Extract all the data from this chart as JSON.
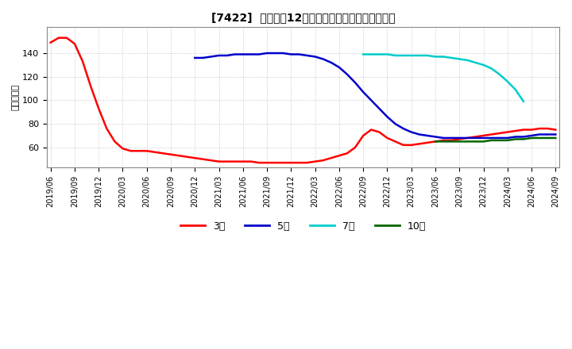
{
  "title": "[7422]  経常利益12か月移動合計の標準偏差の推移",
  "ylabel": "（百万円）",
  "background_color": "#ffffff",
  "plot_background": "#ffffff",
  "series": {
    "3年": {
      "color": "#ff0000",
      "x": [
        0,
        1,
        2,
        3,
        4,
        5,
        6,
        7,
        8,
        9,
        10,
        11,
        12,
        13,
        14,
        15,
        16,
        17,
        18,
        19,
        20,
        21,
        22,
        23,
        24,
        25,
        26,
        27,
        28,
        29,
        30,
        31,
        32,
        33,
        34,
        35,
        36,
        37,
        38,
        39,
        40,
        41,
        42,
        43,
        44,
        45,
        46,
        47,
        48,
        49,
        50,
        51,
        52,
        53,
        54,
        55,
        56,
        57,
        58,
        59,
        60,
        61,
        62,
        63
      ],
      "y": [
        149,
        153,
        153,
        148,
        133,
        112,
        93,
        76,
        65,
        59,
        57,
        57,
        57,
        56,
        55,
        54,
        53,
        52,
        51,
        50,
        49,
        48,
        48,
        48,
        48,
        48,
        47,
        47,
        47,
        47,
        47,
        47,
        47,
        48,
        49,
        51,
        53,
        55,
        60,
        70,
        75,
        73,
        68,
        65,
        62,
        62,
        63,
        64,
        65,
        66,
        66,
        67,
        68,
        69,
        70,
        71,
        72,
        73,
        74,
        75,
        75,
        76,
        76,
        75
      ]
    },
    "5年": {
      "color": "#0000cc",
      "x": [
        0,
        1,
        2,
        3,
        4,
        5,
        6,
        7,
        8,
        9,
        10,
        11,
        12,
        13,
        14,
        15,
        16,
        17,
        18,
        19,
        20,
        21,
        22,
        23,
        24,
        25,
        26,
        27,
        28,
        29,
        30,
        31,
        32,
        33,
        34,
        35,
        36,
        37,
        38,
        39,
        40,
        41,
        42,
        43,
        44,
        45,
        46,
        47,
        48,
        49,
        50,
        51,
        52,
        53,
        54,
        55,
        56,
        57,
        58,
        59,
        60,
        61,
        62,
        63
      ],
      "y": [
        null,
        null,
        null,
        null,
        null,
        null,
        null,
        null,
        null,
        null,
        null,
        null,
        null,
        null,
        null,
        null,
        null,
        null,
        136,
        136,
        137,
        138,
        138,
        139,
        139,
        139,
        139,
        140,
        140,
        140,
        139,
        139,
        138,
        137,
        135,
        132,
        128,
        122,
        115,
        107,
        100,
        93,
        86,
        80,
        76,
        73,
        71,
        70,
        69,
        68,
        68,
        68,
        68,
        68,
        68,
        68,
        68,
        68,
        69,
        69,
        70,
        71,
        71,
        71
      ]
    },
    "7年": {
      "color": "#00cccc",
      "x": [
        0,
        1,
        2,
        3,
        4,
        5,
        6,
        7,
        8,
        9,
        10,
        11,
        12,
        13,
        14,
        15,
        16,
        17,
        18,
        19,
        20,
        21,
        22,
        23,
        24,
        25,
        26,
        27,
        28,
        29,
        30,
        31,
        32,
        33,
        34,
        35,
        36,
        37,
        38,
        39,
        40,
        41,
        42,
        43,
        44,
        45,
        46,
        47,
        48,
        49,
        50,
        51,
        52,
        53,
        54,
        55,
        56,
        57,
        58,
        59,
        60,
        61,
        62,
        63
      ],
      "y": [
        null,
        null,
        null,
        null,
        null,
        null,
        null,
        null,
        null,
        null,
        null,
        null,
        null,
        null,
        null,
        null,
        null,
        null,
        null,
        null,
        null,
        null,
        null,
        null,
        null,
        null,
        null,
        null,
        null,
        null,
        null,
        null,
        null,
        null,
        null,
        null,
        null,
        null,
        null,
        139,
        139,
        139,
        139,
        138,
        138,
        138,
        138,
        138,
        137,
        137,
        136,
        135,
        134,
        132,
        130,
        127,
        122,
        116,
        109,
        99,
        null,
        null,
        null,
        null
      ]
    },
    "10年": {
      "color": "#006600",
      "x": [
        0,
        1,
        2,
        3,
        4,
        5,
        6,
        7,
        8,
        9,
        10,
        11,
        12,
        13,
        14,
        15,
        16,
        17,
        18,
        19,
        20,
        21,
        22,
        23,
        24,
        25,
        26,
        27,
        28,
        29,
        30,
        31,
        32,
        33,
        34,
        35,
        36,
        37,
        38,
        39,
        40,
        41,
        42,
        43,
        44,
        45,
        46,
        47,
        48,
        49,
        50,
        51,
        52,
        53,
        54,
        55,
        56,
        57,
        58,
        59,
        60,
        61,
        62,
        63
      ],
      "y": [
        null,
        null,
        null,
        null,
        null,
        null,
        null,
        null,
        null,
        null,
        null,
        null,
        null,
        null,
        null,
        null,
        null,
        null,
        null,
        null,
        null,
        null,
        null,
        null,
        null,
        null,
        null,
        null,
        null,
        null,
        null,
        null,
        null,
        null,
        null,
        null,
        null,
        null,
        null,
        null,
        null,
        null,
        null,
        null,
        null,
        null,
        null,
        null,
        65,
        65,
        65,
        65,
        65,
        65,
        65,
        66,
        66,
        66,
        67,
        67,
        68,
        68,
        68,
        68
      ]
    }
  },
  "xtick_positions": [
    0,
    3,
    6,
    9,
    12,
    15,
    18,
    21,
    24,
    27,
    30,
    33,
    36,
    39,
    42,
    45,
    48,
    51,
    54,
    57,
    60,
    63
  ],
  "xtick_labels": [
    "2019/06",
    "2019/09",
    "2019/12",
    "2020/03",
    "2020/06",
    "2020/09",
    "2020/12",
    "2021/03",
    "2021/06",
    "2021/09",
    "2021/12",
    "2022/03",
    "2022/06",
    "2022/09",
    "2022/12",
    "2023/03",
    "2023/06",
    "2023/09",
    "2023/12",
    "2024/03",
    "2024/06",
    "2024/09"
  ],
  "ytick_values": [
    60,
    80,
    100,
    120,
    140
  ],
  "ylim": [
    43,
    162
  ],
  "xlim": [
    -0.5,
    63.5
  ],
  "legend_labels": [
    "3年",
    "5年",
    "7年",
    "10年"
  ],
  "legend_colors": [
    "#ff0000",
    "#0000cc",
    "#00cccc",
    "#006600"
  ],
  "grid_color": "#aaaaaa",
  "spine_color": "#888888"
}
